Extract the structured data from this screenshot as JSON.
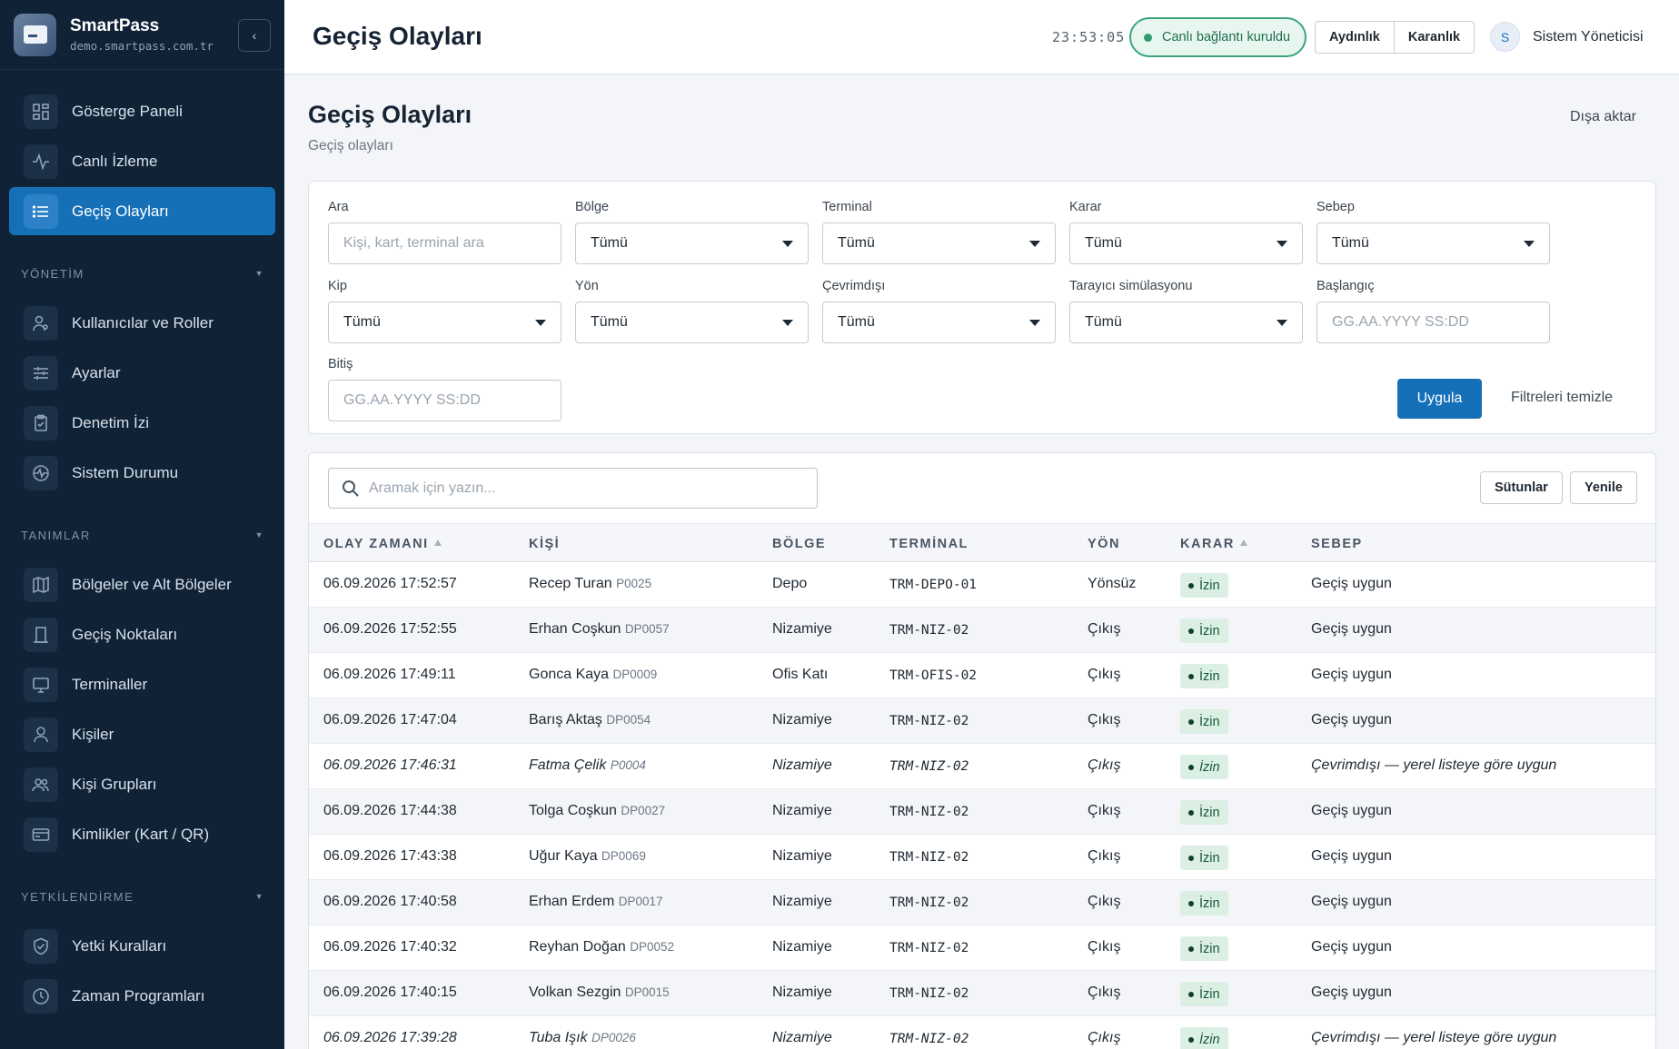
{
  "brand": {
    "name": "SmartPass",
    "domain": "demo.smartpass.com.tr",
    "collapse_icon": "‹"
  },
  "sidebar": {
    "top_items": [
      {
        "label": "Gösterge Paneli",
        "icon": "dashboard-icon"
      },
      {
        "label": "Canlı İzleme",
        "icon": "activity-icon"
      },
      {
        "label": "Geçiş Olayları",
        "icon": "list-icon",
        "active": true
      }
    ],
    "sections": [
      {
        "title": "YÖNETİM",
        "items": [
          {
            "label": "Kullanıcılar ve Roller",
            "icon": "users-roles-icon"
          },
          {
            "label": "Ayarlar",
            "icon": "sliders-icon"
          },
          {
            "label": "Denetim İzi",
            "icon": "clipboard-icon"
          },
          {
            "label": "Sistem Durumu",
            "icon": "health-icon"
          }
        ]
      },
      {
        "title": "TANIMLAR",
        "items": [
          {
            "label": "Bölgeler ve Alt Bölgeler",
            "icon": "map-icon"
          },
          {
            "label": "Geçiş Noktaları",
            "icon": "door-icon"
          },
          {
            "label": "Terminaller",
            "icon": "monitor-icon"
          },
          {
            "label": "Kişiler",
            "icon": "person-icon"
          },
          {
            "label": "Kişi Grupları",
            "icon": "group-icon"
          },
          {
            "label": "Kimlikler (Kart / QR)",
            "icon": "card-icon"
          }
        ]
      },
      {
        "title": "YETKİLENDİRME",
        "items": [
          {
            "label": "Yetki Kuralları",
            "icon": "shield-icon"
          },
          {
            "label": "Zaman Programları",
            "icon": "clock-icon"
          }
        ]
      }
    ]
  },
  "header": {
    "title": "Geçiş Olayları",
    "clock": "23:53:05",
    "live_status": "Canlı bağlantı kuruldu",
    "theme_light": "Aydınlık",
    "theme_dark": "Karanlık",
    "user_initial": "S",
    "user_name": "Sistem Yöneticisi"
  },
  "page": {
    "title": "Geçiş Olayları",
    "subtitle": "Geçiş olayları",
    "export_label": "Dışa aktar"
  },
  "filters": {
    "search": {
      "label": "Ara",
      "placeholder": "Kişi, kart, terminal ara"
    },
    "region": {
      "label": "Bölge",
      "value": "Tümü"
    },
    "terminal": {
      "label": "Terminal",
      "value": "Tümü"
    },
    "decision": {
      "label": "Karar",
      "value": "Tümü"
    },
    "reason": {
      "label": "Sebep",
      "value": "Tümü"
    },
    "mode": {
      "label": "Kip",
      "value": "Tümü"
    },
    "direction": {
      "label": "Yön",
      "value": "Tümü"
    },
    "offline": {
      "label": "Çevrimdışı",
      "value": "Tümü"
    },
    "scanner_sim": {
      "label": "Tarayıcı simülasyonu",
      "value": "Tümü"
    },
    "start": {
      "label": "Başlangıç",
      "placeholder": "GG.AA.YYYY SS:DD"
    },
    "end": {
      "label": "Bitiş",
      "placeholder": "GG.AA.YYYY SS:DD"
    },
    "apply_label": "Uygula",
    "clear_label": "Filtreleri temizle"
  },
  "table": {
    "search_placeholder": "Aramak için yazın...",
    "columns_label": "Sütunlar",
    "refresh_label": "Yenile",
    "headers": [
      "OLAY ZAMANI",
      "KİŞİ",
      "BÖLGE",
      "TERMİNAL",
      "YÖN",
      "KARAR",
      "SEBEP"
    ],
    "rows": [
      {
        "time": "06.09.2026 17:52:57",
        "name": "Recep Turan",
        "pid": "P0025",
        "region": "Depo",
        "terminal": "TRM-DEPO-01",
        "direction": "Yönsüz",
        "decision": "İzin",
        "reason": "Geçiş uygun",
        "offline": false
      },
      {
        "time": "06.09.2026 17:52:55",
        "name": "Erhan Coşkun",
        "pid": "DP0057",
        "region": "Nizamiye",
        "terminal": "TRM-NIZ-02",
        "direction": "Çıkış",
        "decision": "İzin",
        "reason": "Geçiş uygun",
        "offline": false
      },
      {
        "time": "06.09.2026 17:49:11",
        "name": "Gonca Kaya",
        "pid": "DP0009",
        "region": "Ofis Katı",
        "terminal": "TRM-OFIS-02",
        "direction": "Çıkış",
        "decision": "İzin",
        "reason": "Geçiş uygun",
        "offline": false
      },
      {
        "time": "06.09.2026 17:47:04",
        "name": "Barış Aktaş",
        "pid": "DP0054",
        "region": "Nizamiye",
        "terminal": "TRM-NIZ-02",
        "direction": "Çıkış",
        "decision": "İzin",
        "reason": "Geçiş uygun",
        "offline": false
      },
      {
        "time": "06.09.2026 17:46:31",
        "name": "Fatma Çelik",
        "pid": "P0004",
        "region": "Nizamiye",
        "terminal": "TRM-NIZ-02",
        "direction": "Çıkış",
        "decision": "İzin",
        "reason": "Çevrimdışı — yerel listeye göre uygun",
        "offline": true
      },
      {
        "time": "06.09.2026 17:44:38",
        "name": "Tolga Coşkun",
        "pid": "DP0027",
        "region": "Nizamiye",
        "terminal": "TRM-NIZ-02",
        "direction": "Çıkış",
        "decision": "İzin",
        "reason": "Geçiş uygun",
        "offline": false
      },
      {
        "time": "06.09.2026 17:43:38",
        "name": "Uğur Kaya",
        "pid": "DP0069",
        "region": "Nizamiye",
        "terminal": "TRM-NIZ-02",
        "direction": "Çıkış",
        "decision": "İzin",
        "reason": "Geçiş uygun",
        "offline": false
      },
      {
        "time": "06.09.2026 17:40:58",
        "name": "Erhan Erdem",
        "pid": "DP0017",
        "region": "Nizamiye",
        "terminal": "TRM-NIZ-02",
        "direction": "Çıkış",
        "decision": "İzin",
        "reason": "Geçiş uygun",
        "offline": false
      },
      {
        "time": "06.09.2026 17:40:32",
        "name": "Reyhan Doğan",
        "pid": "DP0052",
        "region": "Nizamiye",
        "terminal": "TRM-NIZ-02",
        "direction": "Çıkış",
        "decision": "İzin",
        "reason": "Geçiş uygun",
        "offline": false
      },
      {
        "time": "06.09.2026 17:40:15",
        "name": "Volkan Sezgin",
        "pid": "DP0015",
        "region": "Nizamiye",
        "terminal": "TRM-NIZ-02",
        "direction": "Çıkış",
        "decision": "İzin",
        "reason": "Geçiş uygun",
        "offline": false
      },
      {
        "time": "06.09.2026 17:39:28",
        "name": "Tuba Işık",
        "pid": "DP0026",
        "region": "Nizamiye",
        "terminal": "TRM-NIZ-02",
        "direction": "Çıkış",
        "decision": "İzin",
        "reason": "Çevrimdışı — yerel listeye göre uygun",
        "offline": true
      }
    ]
  },
  "colors": {
    "sidebar_bg": "#0f2236",
    "accent": "#1670b8",
    "success": "#2e9b6f",
    "badge_bg": "#dcefe5"
  }
}
